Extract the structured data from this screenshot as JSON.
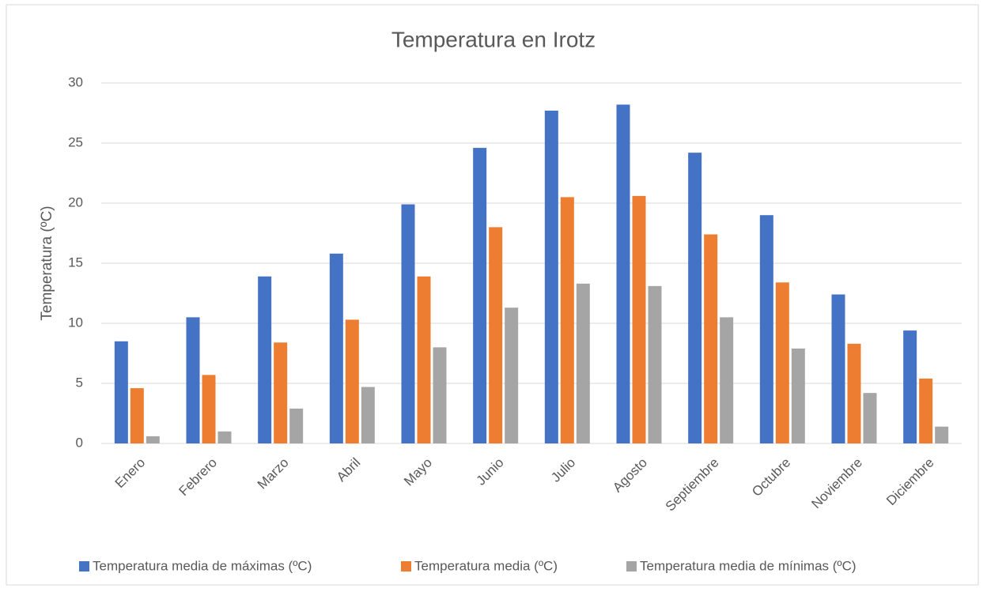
{
  "chart_data": {
    "type": "bar",
    "title": "Temperatura en Irotz",
    "y_label": "Temperatura (ºC)",
    "categories": [
      "Enero",
      "Febrero",
      "Marzo",
      "Abril",
      "Mayo",
      "Junio",
      "Julio",
      "Agosto",
      "Septiembre",
      "Octubre",
      "Noviembre",
      "Diciembre"
    ],
    "series": [
      {
        "name": "Temperatura media de máximas (ºC)",
        "color": "#4472c4",
        "values": [
          8.5,
          10.5,
          13.9,
          15.8,
          19.9,
          24.6,
          27.7,
          28.2,
          24.2,
          19.0,
          12.4,
          9.4
        ]
      },
      {
        "name": "Temperatura media (ºC)",
        "color": "#ed7d31",
        "values": [
          4.6,
          5.7,
          8.4,
          10.3,
          13.9,
          18.0,
          20.5,
          20.6,
          17.4,
          13.4,
          8.3,
          5.4
        ]
      },
      {
        "name": "Temperatura media de mínimas (ºC)",
        "color": "#a5a5a5",
        "values": [
          0.6,
          1.0,
          2.9,
          4.7,
          8.0,
          11.3,
          13.3,
          13.1,
          10.5,
          7.9,
          4.2,
          1.4
        ]
      }
    ],
    "ylim": [
      0,
      30
    ],
    "yticks": [
      0,
      5,
      10,
      15,
      20,
      25,
      30
    ],
    "grid": true,
    "legend": "bottom"
  }
}
